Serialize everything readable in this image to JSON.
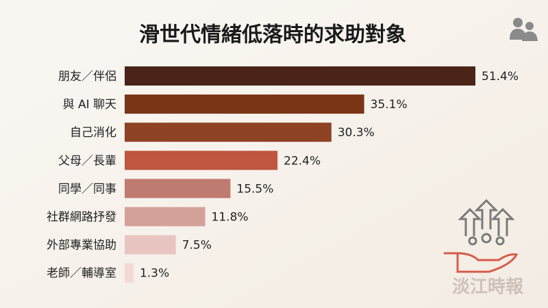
{
  "chart_data": {
    "type": "bar",
    "orientation": "horizontal",
    "title": "滑世代情緒低落時的求助對象",
    "categories": [
      "朋友／伴侶",
      "與 AI 聊天",
      "自己消化",
      "父母／長輩",
      "同學／同事",
      "社群網路抒發",
      "外部專業協助",
      "老師／輔導室"
    ],
    "values": [
      51.4,
      35.1,
      30.3,
      22.4,
      15.5,
      11.8,
      7.5,
      1.3
    ],
    "value_labels": [
      "51.4%",
      "35.1%",
      "30.3%",
      "22.4%",
      "15.5%",
      "11.8%",
      "7.5%",
      "1.3%"
    ],
    "colors": [
      "#4a2418",
      "#7a3515",
      "#8e4324",
      "#c0563f",
      "#c07b70",
      "#d4a199",
      "#e9c5c2",
      "#f1d9d8"
    ],
    "watermark": "淡江時報"
  }
}
